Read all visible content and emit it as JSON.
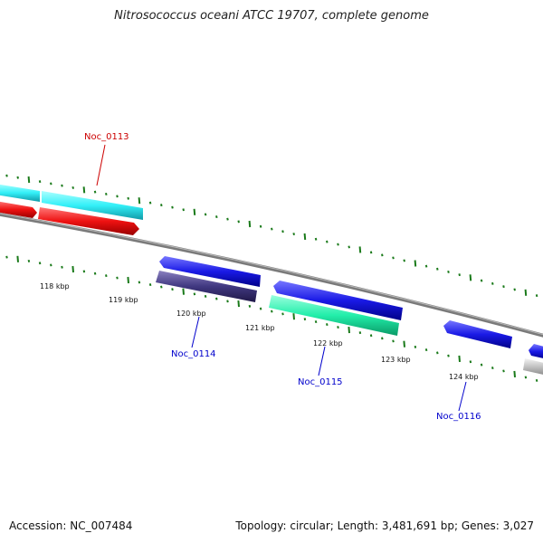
{
  "title": "Nitrosococcus oceani ATCC 19707, complete genome",
  "footer": {
    "accession": "Accession: NC_007484",
    "summary": "Topology: circular; Length: 3,481,691 bp; Genes: 3,027"
  },
  "kbp_labels": [
    "118 kbp",
    "119 kbp",
    "120 kbp",
    "121 kbp",
    "122 kbp",
    "123 kbp",
    "124 kbp"
  ],
  "gene_labels": {
    "noc0113": "Noc_0113",
    "noc0114": "Noc_0114",
    "noc0115": "Noc_0115",
    "noc0116": "Noc_0116"
  },
  "colors": {
    "cyan": "#33f0f8",
    "red": "#ee1111",
    "blue": "#1a1ae6",
    "navy": "#403880",
    "teal": "#22eeaa",
    "gray": "#c0c0c0",
    "backbone": "#7a7a7a",
    "tick": "#1a7a1a"
  }
}
